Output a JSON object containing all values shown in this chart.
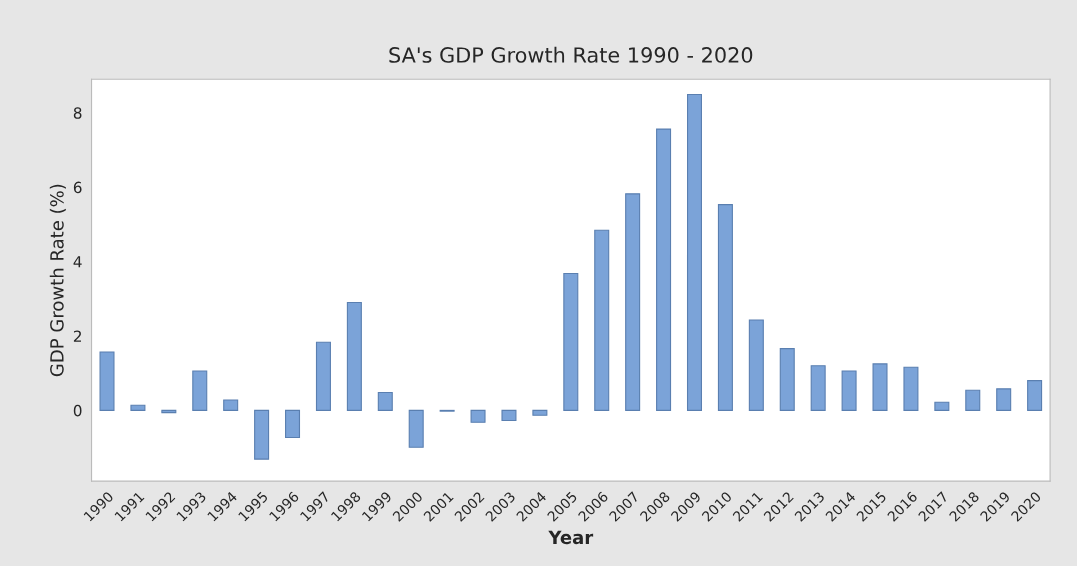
{
  "chart_data": {
    "type": "bar",
    "title": "SA's GDP Growth Rate 1990 - 2020",
    "xlabel": "Year",
    "ylabel": "GDP Growth Rate (%)",
    "categories": [
      "1990",
      "1991",
      "1992",
      "1993",
      "1994",
      "1995",
      "1996",
      "1997",
      "1998",
      "1999",
      "2000",
      "2001",
      "2002",
      "2003",
      "2004",
      "2005",
      "2006",
      "2007",
      "2008",
      "2009",
      "2010",
      "2011",
      "2012",
      "2013",
      "2014",
      "2015",
      "2016",
      "2017",
      "2018",
      "2019",
      "2020"
    ],
    "values": [
      1.57,
      0.14,
      -0.06,
      1.06,
      0.28,
      -1.31,
      -0.73,
      1.83,
      2.9,
      0.48,
      -0.99,
      -0.02,
      -0.32,
      -0.27,
      -0.13,
      3.68,
      4.84,
      5.82,
      7.56,
      8.49,
      5.53,
      2.43,
      1.66,
      1.2,
      1.06,
      1.25,
      1.16,
      0.22,
      0.54,
      0.58,
      0.8
    ],
    "color": "#7ba3d8",
    "ylim": [
      -1.9,
      8.9
    ],
    "yticks": [
      0,
      2,
      4,
      6,
      8
    ],
    "grid": false,
    "legend": false
  }
}
